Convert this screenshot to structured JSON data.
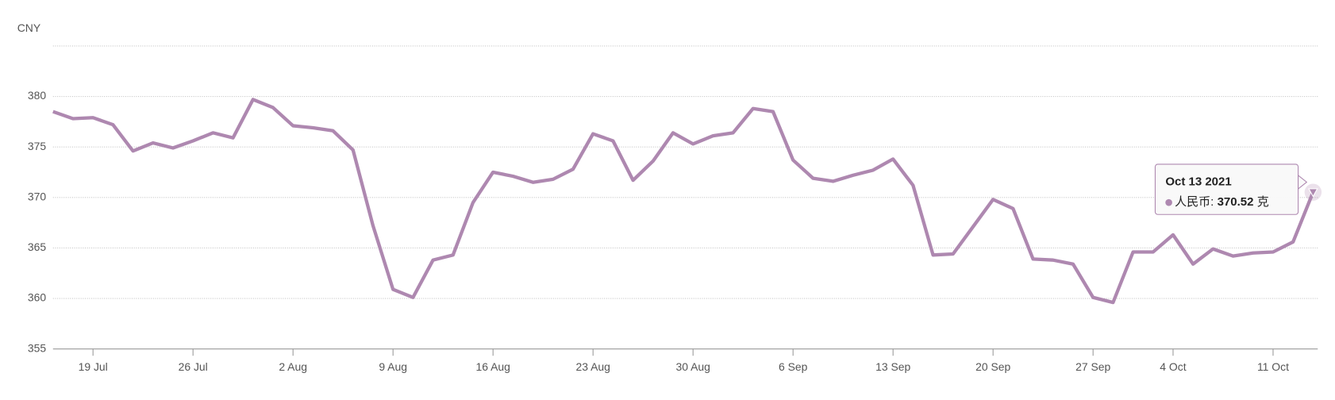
{
  "chart_data": {
    "type": "line",
    "unit_label": "CNY",
    "categories": [
      "2021-07-15",
      "2021-07-16",
      "2021-07-19",
      "2021-07-20",
      "2021-07-21",
      "2021-07-22",
      "2021-07-23",
      "2021-07-26",
      "2021-07-27",
      "2021-07-28",
      "2021-07-29",
      "2021-07-30",
      "2021-08-02",
      "2021-08-03",
      "2021-08-04",
      "2021-08-05",
      "2021-08-06",
      "2021-08-09",
      "2021-08-10",
      "2021-08-11",
      "2021-08-12",
      "2021-08-13",
      "2021-08-16",
      "2021-08-17",
      "2021-08-18",
      "2021-08-19",
      "2021-08-20",
      "2021-08-23",
      "2021-08-24",
      "2021-08-25",
      "2021-08-26",
      "2021-08-27",
      "2021-08-30",
      "2021-08-31",
      "2021-09-01",
      "2021-09-02",
      "2021-09-03",
      "2021-09-06",
      "2021-09-07",
      "2021-09-08",
      "2021-09-09",
      "2021-09-10",
      "2021-09-13",
      "2021-09-14",
      "2021-09-15",
      "2021-09-16",
      "2021-09-17",
      "2021-09-20",
      "2021-09-21",
      "2021-09-22",
      "2021-09-23",
      "2021-09-24",
      "2021-09-27",
      "2021-09-28",
      "2021-09-29",
      "2021-09-30",
      "2021-10-04",
      "2021-10-05",
      "2021-10-06",
      "2021-10-07",
      "2021-10-08",
      "2021-10-11",
      "2021-10-12",
      "2021-10-13"
    ],
    "values": [
      378.5,
      377.8,
      377.9,
      377.2,
      374.6,
      375.4,
      374.9,
      375.6,
      376.4,
      375.9,
      379.7,
      378.9,
      377.1,
      376.9,
      376.6,
      374.7,
      367.2,
      360.9,
      360.1,
      363.8,
      364.3,
      369.5,
      372.5,
      372.1,
      371.5,
      371.8,
      372.8,
      376.3,
      375.6,
      371.7,
      373.6,
      376.4,
      375.3,
      376.1,
      376.4,
      378.8,
      378.5,
      373.7,
      371.9,
      371.6,
      372.2,
      372.7,
      373.8,
      371.2,
      364.3,
      364.4,
      367.1,
      369.8,
      368.9,
      363.9,
      363.8,
      363.4,
      360.1,
      359.6,
      364.6,
      364.6,
      366.3,
      363.4,
      364.9,
      364.2,
      364.5,
      364.6,
      365.6,
      370.52
    ],
    "color": "#ae88b0",
    "ylim": [
      355,
      385
    ],
    "yticks": [
      355,
      360,
      365,
      370,
      375,
      380
    ],
    "grid": true,
    "xticks": [
      {
        "value": "2021-07-19",
        "label": "19 Jul"
      },
      {
        "value": "2021-07-26",
        "label": "26 Jul"
      },
      {
        "value": "2021-08-02",
        "label": "2 Aug"
      },
      {
        "value": "2021-08-09",
        "label": "9 Aug"
      },
      {
        "value": "2021-08-16",
        "label": "16 Aug"
      },
      {
        "value": "2021-08-23",
        "label": "23 Aug"
      },
      {
        "value": "2021-08-30",
        "label": "30 Aug"
      },
      {
        "value": "2021-09-06",
        "label": "6 Sep"
      },
      {
        "value": "2021-09-13",
        "label": "13 Sep"
      },
      {
        "value": "2021-09-20",
        "label": "20 Sep"
      },
      {
        "value": "2021-09-27",
        "label": "27 Sep"
      },
      {
        "value": "2021-10-04",
        "label": "4 Oct"
      },
      {
        "value": "2021-10-11",
        "label": "11 Oct"
      }
    ],
    "tooltip": {
      "title": "Oct 13 2021",
      "label": "人民币:",
      "unit": "克"
    }
  }
}
